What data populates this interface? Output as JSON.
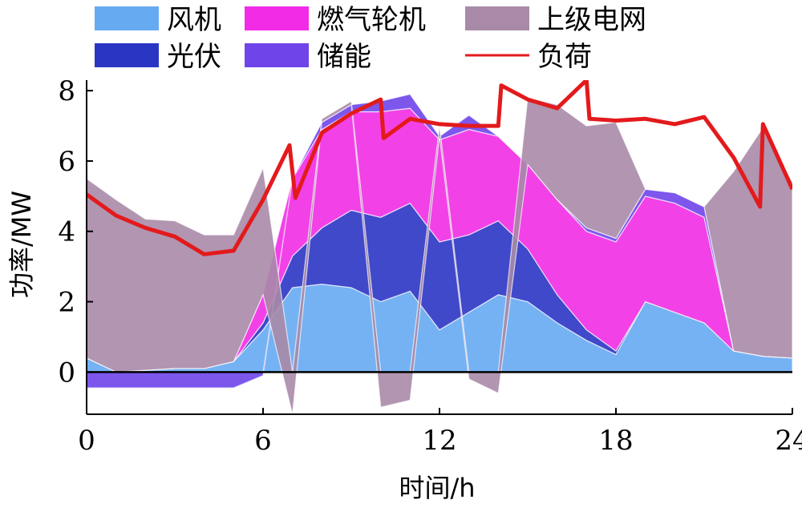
{
  "chart_data": {
    "type": "area",
    "xlabel": "时间/h",
    "ylabel": "功率/MW",
    "xlim": [
      0,
      24
    ],
    "ylim": [
      -1.2,
      8.3
    ],
    "xticks": [
      0,
      6,
      12,
      18,
      24
    ],
    "yticks": [
      0,
      2,
      4,
      6,
      8
    ],
    "grid": false,
    "legend_position": "top",
    "x": [
      0,
      1,
      2,
      3,
      4,
      5,
      6,
      7,
      8,
      9,
      10,
      11,
      12,
      13,
      14,
      15,
      16,
      17,
      18,
      19,
      20,
      21,
      22,
      23,
      24
    ],
    "series": [
      {
        "name": "风机",
        "color": "#66aaf2",
        "values": [
          0.4,
          0.0,
          0.05,
          0.1,
          0.1,
          0.3,
          1.2,
          2.4,
          2.5,
          2.4,
          2.0,
          2.3,
          1.2,
          1.7,
          2.2,
          2.0,
          1.4,
          0.9,
          0.5,
          2.0,
          1.7,
          1.4,
          0.6,
          0.45,
          0.4
        ]
      },
      {
        "name": "光伏",
        "color": "#2b35c4",
        "values": [
          0,
          0,
          0,
          0,
          0,
          0,
          0.2,
          0.9,
          1.6,
          2.2,
          2.4,
          2.5,
          2.5,
          2.2,
          2.1,
          1.5,
          0.8,
          0.3,
          0.1,
          0,
          0,
          0,
          0,
          0,
          0
        ]
      },
      {
        "name": "燃气轮机",
        "color": "#f22ce6",
        "values": [
          0,
          0,
          0,
          0,
          0,
          0,
          0.8,
          2.2,
          2.8,
          2.8,
          3.0,
          2.7,
          2.9,
          3.0,
          2.4,
          2.4,
          2.7,
          2.8,
          3.1,
          3.0,
          3.1,
          3.0,
          0,
          0,
          0
        ]
      },
      {
        "name": "储能",
        "color": "#6f45ea",
        "values": [
          -0.45,
          -0.45,
          -0.45,
          -0.45,
          -0.45,
          -0.45,
          -0.1,
          0,
          0.2,
          0.2,
          0.3,
          0.4,
          0.1,
          0.4,
          0,
          0,
          0,
          0.1,
          0.1,
          0.2,
          0.3,
          0.3,
          0,
          0,
          0
        ]
      },
      {
        "name": "上级电网",
        "color": "#a88aa8",
        "values": [
          5.1,
          4.9,
          4.3,
          4.2,
          3.8,
          3.6,
          3.6,
          -1.2,
          0.1,
          0.1,
          -1.0,
          -0.8,
          0.3,
          -0.2,
          -0.6,
          1.9,
          2.7,
          2.9,
          3.3,
          0,
          0,
          0,
          5.1,
          6.5,
          5.0
        ]
      }
    ],
    "load": {
      "name": "负荷",
      "color": "#e31a1c",
      "x": [
        0,
        1,
        2,
        3,
        4,
        5,
        6,
        6.9,
        7.1,
        8,
        9,
        10,
        10.1,
        11,
        12,
        13,
        14,
        14.1,
        15,
        16,
        17,
        17.1,
        18,
        19,
        20,
        21,
        22,
        22.9,
        23,
        24
      ],
      "values": [
        5.05,
        4.45,
        4.1,
        3.85,
        3.35,
        3.45,
        4.9,
        6.45,
        4.95,
        6.8,
        7.35,
        7.75,
        6.65,
        7.2,
        7.05,
        7.0,
        7.0,
        8.15,
        7.75,
        7.5,
        8.3,
        7.2,
        7.15,
        7.2,
        7.05,
        7.25,
        6.1,
        4.7,
        7.05,
        5.2
      ]
    }
  }
}
